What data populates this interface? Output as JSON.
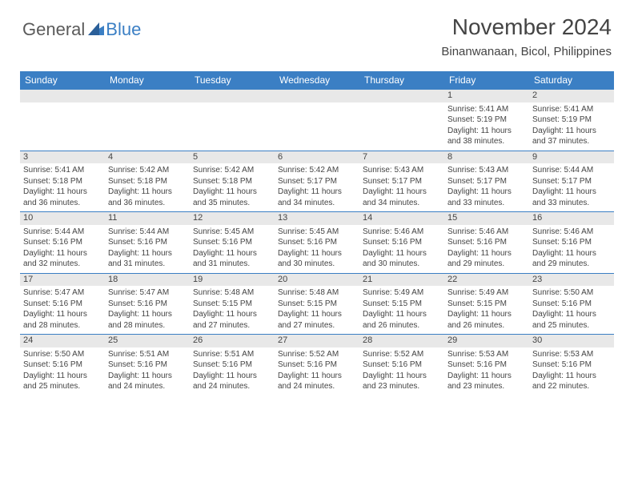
{
  "logo": {
    "textGeneral": "General",
    "textBlue": "Blue"
  },
  "title": "November 2024",
  "location": "Binanwanaan, Bicol, Philippines",
  "colors": {
    "headerBg": "#3b7fc4",
    "headerText": "#ffffff",
    "dayNumBg": "#e8e8e8",
    "borderColor": "#3b7fc4",
    "bodyText": "#444444",
    "logoGray": "#5a5a5a",
    "logoBlue": "#3b7fc4"
  },
  "fonts": {
    "titleSize": 28,
    "locationSize": 15,
    "dayHeaderSize": 12,
    "dayNumSize": 11,
    "cellSize": 10
  },
  "dayHeaders": [
    "Sunday",
    "Monday",
    "Tuesday",
    "Wednesday",
    "Thursday",
    "Friday",
    "Saturday"
  ],
  "weeks": [
    [
      null,
      null,
      null,
      null,
      null,
      {
        "n": "1",
        "sr": "5:41 AM",
        "ss": "5:19 PM",
        "dl": "11 hours and 38 minutes."
      },
      {
        "n": "2",
        "sr": "5:41 AM",
        "ss": "5:19 PM",
        "dl": "11 hours and 37 minutes."
      }
    ],
    [
      {
        "n": "3",
        "sr": "5:41 AM",
        "ss": "5:18 PM",
        "dl": "11 hours and 36 minutes."
      },
      {
        "n": "4",
        "sr": "5:42 AM",
        "ss": "5:18 PM",
        "dl": "11 hours and 36 minutes."
      },
      {
        "n": "5",
        "sr": "5:42 AM",
        "ss": "5:18 PM",
        "dl": "11 hours and 35 minutes."
      },
      {
        "n": "6",
        "sr": "5:42 AM",
        "ss": "5:17 PM",
        "dl": "11 hours and 34 minutes."
      },
      {
        "n": "7",
        "sr": "5:43 AM",
        "ss": "5:17 PM",
        "dl": "11 hours and 34 minutes."
      },
      {
        "n": "8",
        "sr": "5:43 AM",
        "ss": "5:17 PM",
        "dl": "11 hours and 33 minutes."
      },
      {
        "n": "9",
        "sr": "5:44 AM",
        "ss": "5:17 PM",
        "dl": "11 hours and 33 minutes."
      }
    ],
    [
      {
        "n": "10",
        "sr": "5:44 AM",
        "ss": "5:16 PM",
        "dl": "11 hours and 32 minutes."
      },
      {
        "n": "11",
        "sr": "5:44 AM",
        "ss": "5:16 PM",
        "dl": "11 hours and 31 minutes."
      },
      {
        "n": "12",
        "sr": "5:45 AM",
        "ss": "5:16 PM",
        "dl": "11 hours and 31 minutes."
      },
      {
        "n": "13",
        "sr": "5:45 AM",
        "ss": "5:16 PM",
        "dl": "11 hours and 30 minutes."
      },
      {
        "n": "14",
        "sr": "5:46 AM",
        "ss": "5:16 PM",
        "dl": "11 hours and 30 minutes."
      },
      {
        "n": "15",
        "sr": "5:46 AM",
        "ss": "5:16 PM",
        "dl": "11 hours and 29 minutes."
      },
      {
        "n": "16",
        "sr": "5:46 AM",
        "ss": "5:16 PM",
        "dl": "11 hours and 29 minutes."
      }
    ],
    [
      {
        "n": "17",
        "sr": "5:47 AM",
        "ss": "5:16 PM",
        "dl": "11 hours and 28 minutes."
      },
      {
        "n": "18",
        "sr": "5:47 AM",
        "ss": "5:16 PM",
        "dl": "11 hours and 28 minutes."
      },
      {
        "n": "19",
        "sr": "5:48 AM",
        "ss": "5:15 PM",
        "dl": "11 hours and 27 minutes."
      },
      {
        "n": "20",
        "sr": "5:48 AM",
        "ss": "5:15 PM",
        "dl": "11 hours and 27 minutes."
      },
      {
        "n": "21",
        "sr": "5:49 AM",
        "ss": "5:15 PM",
        "dl": "11 hours and 26 minutes."
      },
      {
        "n": "22",
        "sr": "5:49 AM",
        "ss": "5:15 PM",
        "dl": "11 hours and 26 minutes."
      },
      {
        "n": "23",
        "sr": "5:50 AM",
        "ss": "5:16 PM",
        "dl": "11 hours and 25 minutes."
      }
    ],
    [
      {
        "n": "24",
        "sr": "5:50 AM",
        "ss": "5:16 PM",
        "dl": "11 hours and 25 minutes."
      },
      {
        "n": "25",
        "sr": "5:51 AM",
        "ss": "5:16 PM",
        "dl": "11 hours and 24 minutes."
      },
      {
        "n": "26",
        "sr": "5:51 AM",
        "ss": "5:16 PM",
        "dl": "11 hours and 24 minutes."
      },
      {
        "n": "27",
        "sr": "5:52 AM",
        "ss": "5:16 PM",
        "dl": "11 hours and 24 minutes."
      },
      {
        "n": "28",
        "sr": "5:52 AM",
        "ss": "5:16 PM",
        "dl": "11 hours and 23 minutes."
      },
      {
        "n": "29",
        "sr": "5:53 AM",
        "ss": "5:16 PM",
        "dl": "11 hours and 23 minutes."
      },
      {
        "n": "30",
        "sr": "5:53 AM",
        "ss": "5:16 PM",
        "dl": "11 hours and 22 minutes."
      }
    ]
  ],
  "labels": {
    "sunrise": "Sunrise:",
    "sunset": "Sunset:",
    "daylight": "Daylight:"
  }
}
